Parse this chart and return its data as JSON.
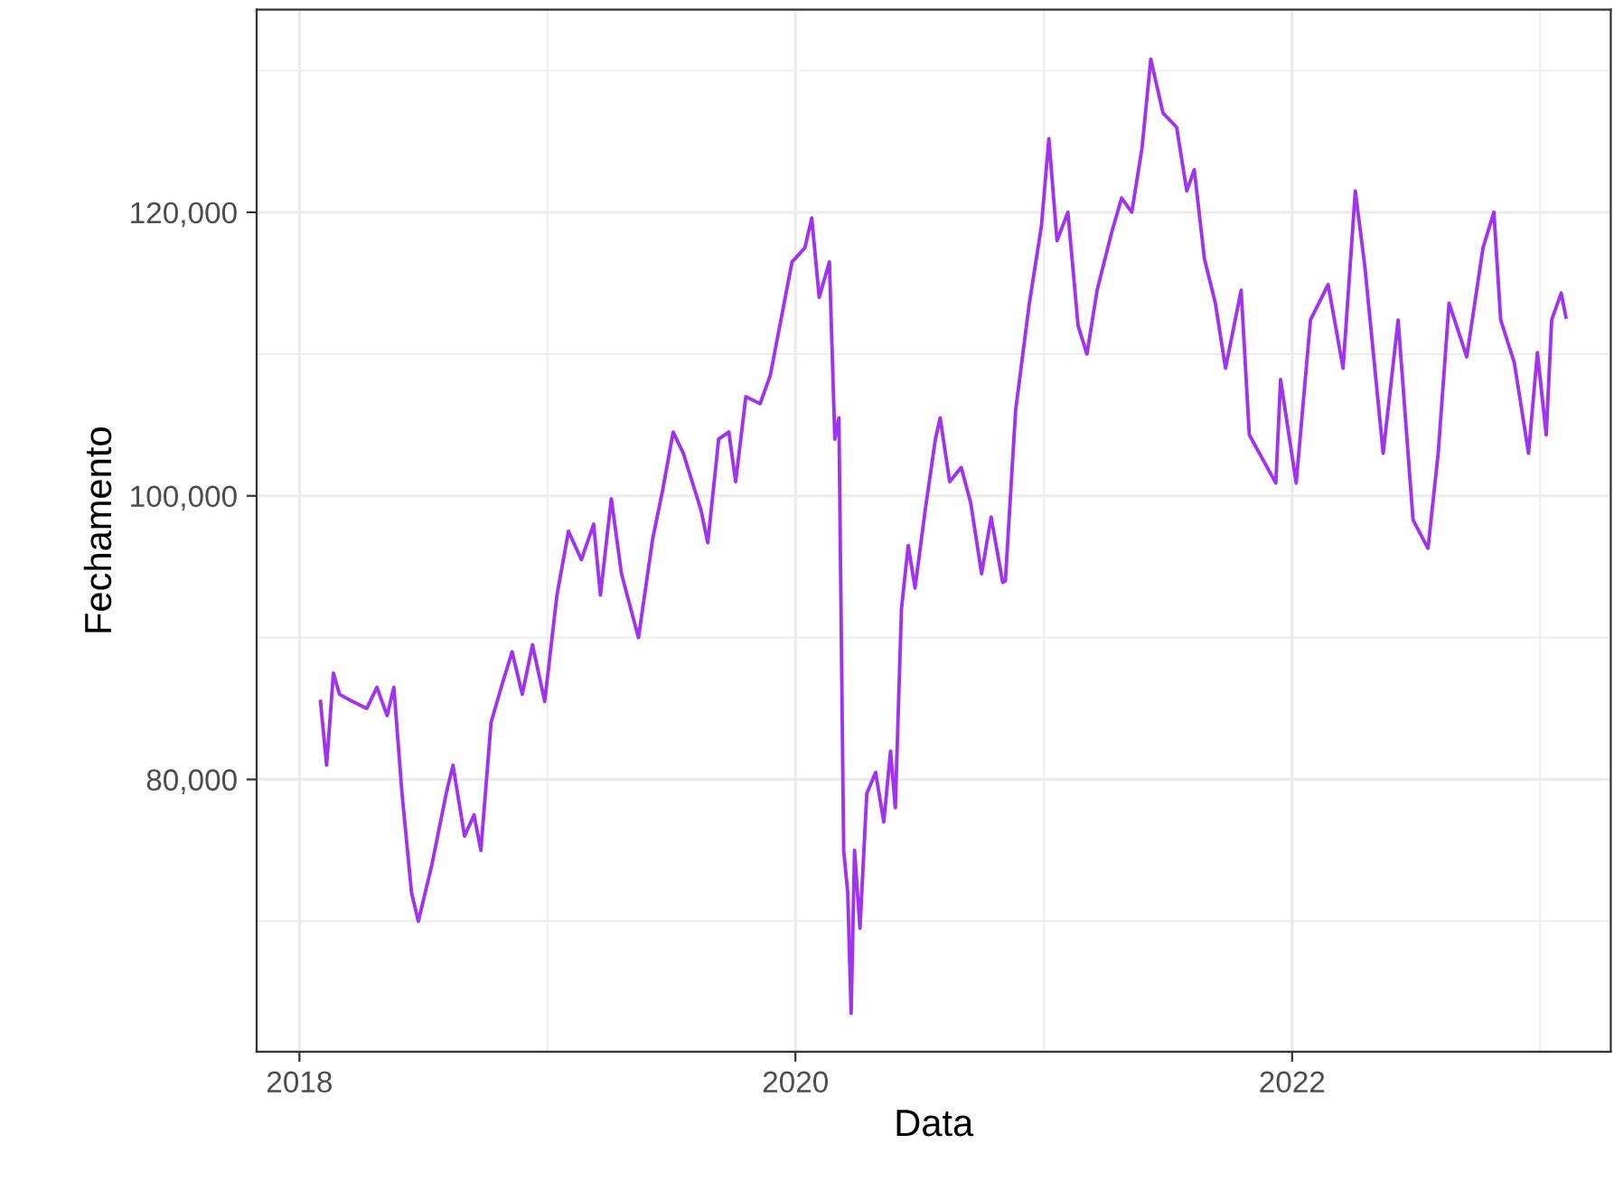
{
  "chart_data": {
    "type": "line",
    "xlabel": "Data",
    "ylabel": "Fechamento",
    "x": [
      "2018-02-01",
      "2018-02-10",
      "2018-02-20",
      "2018-03-01",
      "2018-03-20",
      "2018-04-10",
      "2018-04-25",
      "2018-05-10",
      "2018-05-20",
      "2018-06-01",
      "2018-06-15",
      "2018-06-25",
      "2018-07-15",
      "2018-08-05",
      "2018-08-15",
      "2018-09-01",
      "2018-09-15",
      "2018-09-25",
      "2018-10-10",
      "2018-10-25",
      "2018-11-10",
      "2018-11-25",
      "2018-12-10",
      "2018-12-28",
      "2019-01-15",
      "2019-02-01",
      "2019-02-20",
      "2019-03-10",
      "2019-03-20",
      "2019-04-05",
      "2019-04-20",
      "2019-05-15",
      "2019-06-05",
      "2019-06-20",
      "2019-07-05",
      "2019-07-20",
      "2019-08-15",
      "2019-08-25",
      "2019-09-10",
      "2019-09-25",
      "2019-10-05",
      "2019-10-20",
      "2019-11-10",
      "2019-11-25",
      "2019-12-15",
      "2019-12-27",
      "2020-01-15",
      "2020-01-25",
      "2020-02-05",
      "2020-02-20",
      "2020-02-28",
      "2020-03-05",
      "2020-03-12",
      "2020-03-18",
      "2020-03-23",
      "2020-03-28",
      "2020-04-05",
      "2020-04-15",
      "2020-04-28",
      "2020-05-10",
      "2020-05-20",
      "2020-05-27",
      "2020-06-05",
      "2020-06-15",
      "2020-06-25",
      "2020-07-10",
      "2020-07-25",
      "2020-08-01",
      "2020-08-15",
      "2020-09-01",
      "2020-09-15",
      "2020-10-01",
      "2020-10-15",
      "2020-11-01",
      "2020-11-05",
      "2020-11-20",
      "2020-12-10",
      "2020-12-28",
      "2021-01-08",
      "2021-01-20",
      "2021-02-05",
      "2021-02-20",
      "2021-03-05",
      "2021-03-20",
      "2021-04-10",
      "2021-04-25",
      "2021-05-10",
      "2021-05-25",
      "2021-06-07",
      "2021-06-25",
      "2021-07-15",
      "2021-07-30",
      "2021-08-10",
      "2021-08-25",
      "2021-09-10",
      "2021-09-25",
      "2021-10-18",
      "2021-10-30",
      "2021-12-08",
      "2021-12-15",
      "2022-01-07",
      "2022-01-28",
      "2022-02-23",
      "2022-03-17",
      "2022-04-04",
      "2022-04-18",
      "2022-05-15",
      "2022-06-06",
      "2022-06-28",
      "2022-07-20",
      "2022-08-04",
      "2022-08-20",
      "2022-09-15",
      "2022-10-09",
      "2022-10-25",
      "2022-11-04",
      "2022-11-24",
      "2022-12-15",
      "2022-12-28",
      "2023-01-10",
      "2023-01-18",
      "2023-02-01",
      "2023-02-08"
    ],
    "series": [
      {
        "color": "#a033f0",
        "values": [
          85500,
          81000,
          87500,
          86000,
          85500,
          85000,
          86500,
          84500,
          86500,
          79000,
          72000,
          70000,
          74000,
          79000,
          81000,
          76000,
          77500,
          75000,
          84000,
          86500,
          89000,
          86000,
          89500,
          85500,
          93000,
          97500,
          95500,
          98000,
          93000,
          99800,
          94500,
          90000,
          97000,
          100500,
          104500,
          103000,
          99000,
          96700,
          104000,
          104500,
          101000,
          107000,
          106500,
          108500,
          113500,
          116500,
          117500,
          119600,
          114000,
          116500,
          104000,
          105500,
          75000,
          72000,
          63500,
          75000,
          69500,
          79000,
          80500,
          77000,
          82000,
          78000,
          92000,
          96500,
          93500,
          99000,
          104000,
          105500,
          101000,
          102000,
          99500,
          94500,
          98500,
          93900,
          94000,
          106000,
          113500,
          119000,
          125200,
          118000,
          120000,
          112000,
          110000,
          114500,
          118500,
          121000,
          120000,
          124500,
          130800,
          127000,
          126000,
          121500,
          123000,
          116700,
          113600,
          109000,
          114500,
          104300,
          100900,
          108200,
          100900,
          112400,
          114900,
          109000,
          121500,
          116200,
          103000,
          112400,
          98300,
          96300,
          103000,
          113600,
          109800,
          117500,
          120000,
          112400,
          109400,
          103000,
          110100,
          104300,
          112400,
          114300,
          112600
        ]
      }
    ],
    "xlim": [
      "2017-10-30",
      "2023-04-15"
    ],
    "xticks": [
      {
        "value": "2018",
        "label": "2018"
      },
      {
        "value": "2019",
        "label": null
      },
      {
        "value": "2020",
        "label": "2020"
      },
      {
        "value": "2021",
        "label": null
      },
      {
        "value": "2022",
        "label": "2022"
      },
      {
        "value": "2023",
        "label": null
      }
    ],
    "ylim": [
      60800,
      134300
    ],
    "yticks": [
      {
        "value": 70000,
        "label": null
      },
      {
        "value": 80000,
        "label": "80,000"
      },
      {
        "value": 90000,
        "label": null
      },
      {
        "value": 100000,
        "label": "100,000"
      },
      {
        "value": 110000,
        "label": null
      },
      {
        "value": 120000,
        "label": "120,000"
      },
      {
        "value": 130000,
        "label": null
      }
    ],
    "grid": true,
    "line_style": "solid",
    "marker": "none"
  }
}
